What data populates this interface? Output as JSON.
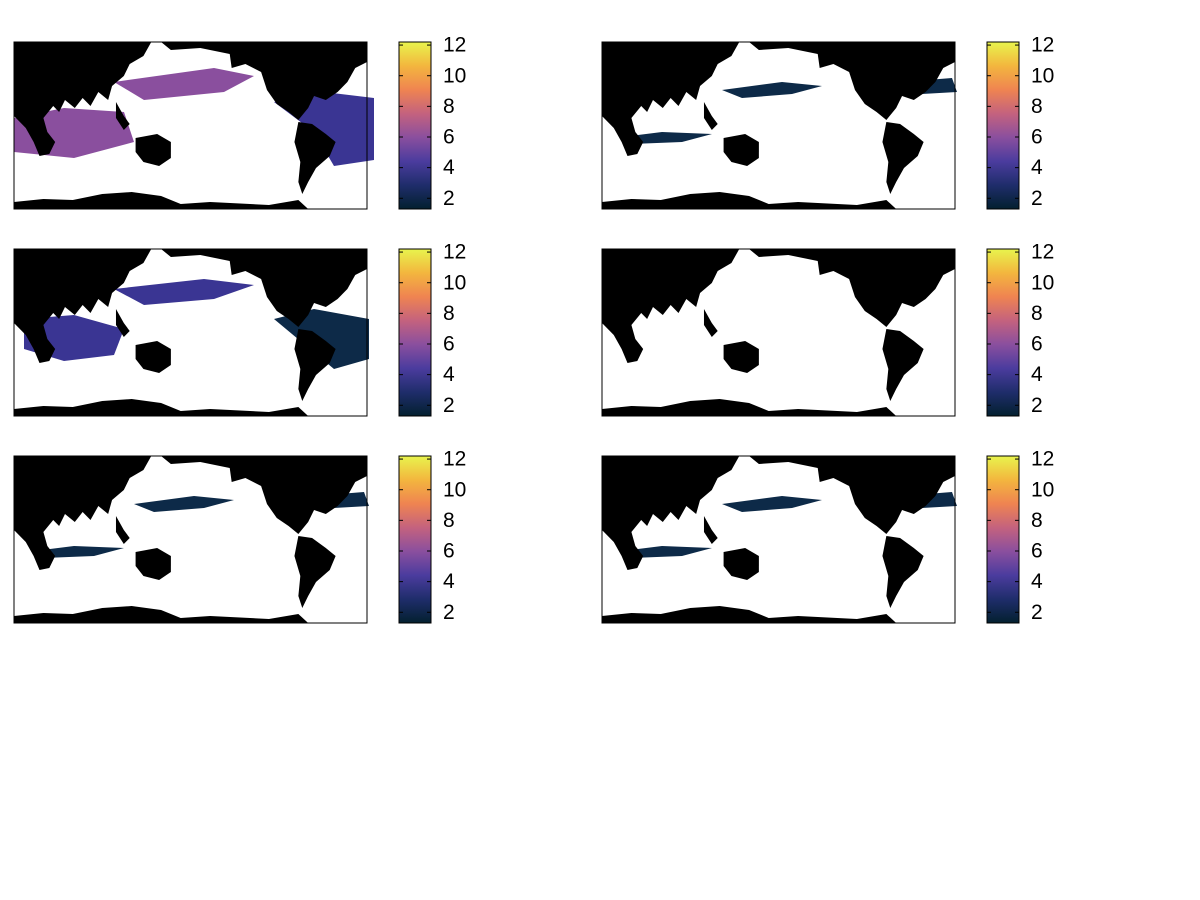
{
  "chart_data": [
    {
      "type": "map",
      "colormap": [
        "#03202f",
        "#1f2d6b",
        "#4b3c9e",
        "#8a4f9e",
        "#c4627e",
        "#ef8451",
        "#f3b63e",
        "#e8f44d"
      ],
      "clim": [
        1.3,
        12.2
      ],
      "cticks": [
        2,
        4,
        6,
        8,
        10,
        12
      ],
      "field": 3
    },
    {
      "type": "map",
      "colormap": [
        "#03202f",
        "#1f2d6b",
        "#4b3c9e",
        "#8a4f9e",
        "#c4627e",
        "#ef8451",
        "#f3b63e",
        "#e8f44d"
      ],
      "clim": [
        1.3,
        12.2
      ],
      "cticks": [
        2,
        4,
        6,
        8,
        10,
        12
      ],
      "field": 1
    },
    {
      "type": "map",
      "colormap": [
        "#03202f",
        "#1f2d6b",
        "#4b3c9e",
        "#8a4f9e",
        "#c4627e",
        "#ef8451",
        "#f3b63e",
        "#e8f44d"
      ],
      "clim": [
        1.3,
        12.2
      ],
      "cticks": [
        2,
        4,
        6,
        8,
        10,
        12
      ],
      "field": 2
    },
    {
      "type": "map",
      "colormap": [
        "#03202f",
        "#1f2d6b",
        "#4b3c9e",
        "#8a4f9e",
        "#c4627e",
        "#ef8451",
        "#f3b63e",
        "#e8f44d"
      ],
      "clim": [
        1.3,
        12.2
      ],
      "cticks": [
        2,
        4,
        6,
        8,
        10,
        12
      ],
      "field": 0
    },
    {
      "type": "map",
      "colormap": [
        "#03202f",
        "#1f2d6b",
        "#4b3c9e",
        "#8a4f9e",
        "#c4627e",
        "#ef8451",
        "#f3b63e",
        "#e8f44d"
      ],
      "clim": [
        1.3,
        12.2
      ],
      "cticks": [
        2,
        4,
        6,
        8,
        10,
        12
      ],
      "field": 1
    },
    {
      "type": "map",
      "colormap": [
        "#03202f",
        "#1f2d6b",
        "#4b3c9e",
        "#8a4f9e",
        "#c4627e",
        "#ef8451",
        "#f3b63e",
        "#e8f44d"
      ],
      "clim": [
        1.3,
        12.2
      ],
      "cticks": [
        2,
        4,
        6,
        8,
        10,
        12
      ],
      "field": 1
    }
  ]
}
